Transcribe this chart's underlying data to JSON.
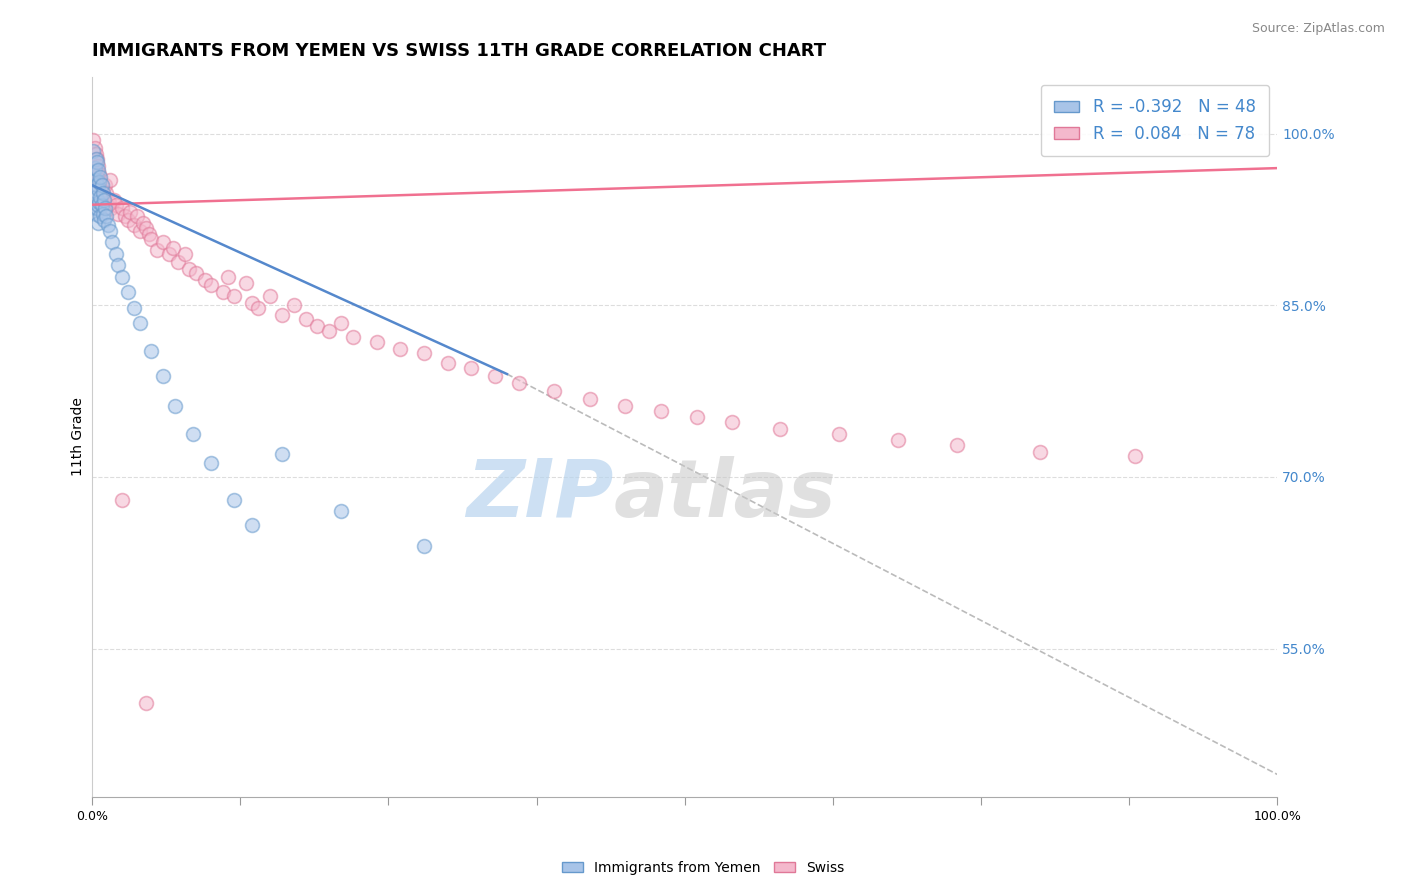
{
  "title": "IMMIGRANTS FROM YEMEN VS SWISS 11TH GRADE CORRELATION CHART",
  "source_text": "Source: ZipAtlas.com",
  "ylabel": "11th Grade",
  "xlim": [
    0.0,
    1.0
  ],
  "ylim": [
    0.42,
    1.05
  ],
  "y_tick_labels_right": [
    "55.0%",
    "70.0%",
    "85.0%",
    "100.0%"
  ],
  "y_tick_values_right": [
    0.55,
    0.7,
    0.85,
    1.0
  ],
  "series1_color": "#a8c4e8",
  "series2_color": "#f4b8cc",
  "series1_edge": "#6699cc",
  "series2_edge": "#e07898",
  "blue_scatter_x": [
    0.001,
    0.001,
    0.002,
    0.002,
    0.002,
    0.003,
    0.003,
    0.003,
    0.003,
    0.004,
    0.004,
    0.004,
    0.005,
    0.005,
    0.005,
    0.005,
    0.006,
    0.006,
    0.007,
    0.007,
    0.007,
    0.008,
    0.008,
    0.009,
    0.009,
    0.01,
    0.01,
    0.011,
    0.012,
    0.013,
    0.015,
    0.017,
    0.02,
    0.022,
    0.025,
    0.03,
    0.035,
    0.04,
    0.05,
    0.06,
    0.07,
    0.085,
    0.1,
    0.12,
    0.135,
    0.16,
    0.21,
    0.28
  ],
  "blue_scatter_y": [
    0.985,
    0.965,
    0.97,
    0.95,
    0.935,
    0.978,
    0.96,
    0.945,
    0.93,
    0.975,
    0.955,
    0.935,
    0.968,
    0.952,
    0.938,
    0.922,
    0.958,
    0.94,
    0.962,
    0.945,
    0.928,
    0.955,
    0.938,
    0.948,
    0.93,
    0.942,
    0.925,
    0.935,
    0.928,
    0.92,
    0.915,
    0.905,
    0.895,
    0.885,
    0.875,
    0.862,
    0.848,
    0.835,
    0.81,
    0.788,
    0.762,
    0.738,
    0.712,
    0.68,
    0.658,
    0.72,
    0.67,
    0.64
  ],
  "pink_scatter_x": [
    0.001,
    0.002,
    0.002,
    0.003,
    0.003,
    0.004,
    0.004,
    0.005,
    0.005,
    0.006,
    0.007,
    0.008,
    0.009,
    0.01,
    0.011,
    0.012,
    0.014,
    0.015,
    0.016,
    0.018,
    0.02,
    0.022,
    0.025,
    0.028,
    0.03,
    0.032,
    0.035,
    0.038,
    0.04,
    0.043,
    0.045,
    0.048,
    0.05,
    0.055,
    0.06,
    0.065,
    0.068,
    0.072,
    0.078,
    0.082,
    0.088,
    0.095,
    0.1,
    0.11,
    0.115,
    0.12,
    0.13,
    0.135,
    0.14,
    0.15,
    0.16,
    0.17,
    0.18,
    0.19,
    0.2,
    0.21,
    0.22,
    0.24,
    0.26,
    0.28,
    0.3,
    0.32,
    0.34,
    0.36,
    0.39,
    0.42,
    0.45,
    0.48,
    0.51,
    0.54,
    0.58,
    0.63,
    0.68,
    0.73,
    0.8,
    0.88,
    0.025,
    0.045
  ],
  "pink_scatter_y": [
    0.995,
    0.988,
    0.975,
    0.982,
    0.968,
    0.978,
    0.962,
    0.972,
    0.958,
    0.965,
    0.96,
    0.955,
    0.95,
    0.945,
    0.955,
    0.948,
    0.94,
    0.96,
    0.935,
    0.942,
    0.938,
    0.93,
    0.935,
    0.928,
    0.925,
    0.932,
    0.92,
    0.928,
    0.915,
    0.922,
    0.918,
    0.912,
    0.908,
    0.898,
    0.905,
    0.895,
    0.9,
    0.888,
    0.895,
    0.882,
    0.878,
    0.872,
    0.868,
    0.862,
    0.875,
    0.858,
    0.87,
    0.852,
    0.848,
    0.858,
    0.842,
    0.85,
    0.838,
    0.832,
    0.828,
    0.835,
    0.822,
    0.818,
    0.812,
    0.808,
    0.8,
    0.795,
    0.788,
    0.782,
    0.775,
    0.768,
    0.762,
    0.758,
    0.752,
    0.748,
    0.742,
    0.738,
    0.732,
    0.728,
    0.722,
    0.718,
    0.68,
    0.502
  ],
  "blue_line_x": [
    0.0,
    0.35
  ],
  "blue_line_y": [
    0.955,
    0.79
  ],
  "pink_line_x": [
    0.0,
    1.0
  ],
  "pink_line_y": [
    0.938,
    0.97
  ],
  "diag_line_x": [
    0.35,
    1.0
  ],
  "diag_line_y": [
    0.79,
    0.44
  ],
  "watermark_left": "ZIP",
  "watermark_right": "atlas",
  "watermark_color_left": "#b8d4ee",
  "watermark_color_right": "#c8c8c8",
  "background_color": "#ffffff",
  "grid_color": "#dddddd",
  "title_fontsize": 13,
  "axis_label_fontsize": 10,
  "tick_fontsize": 9,
  "legend_fontsize": 12,
  "source_fontsize": 9,
  "scatter_size": 100,
  "scatter_alpha": 0.55,
  "scatter_linewidth": 1.2
}
